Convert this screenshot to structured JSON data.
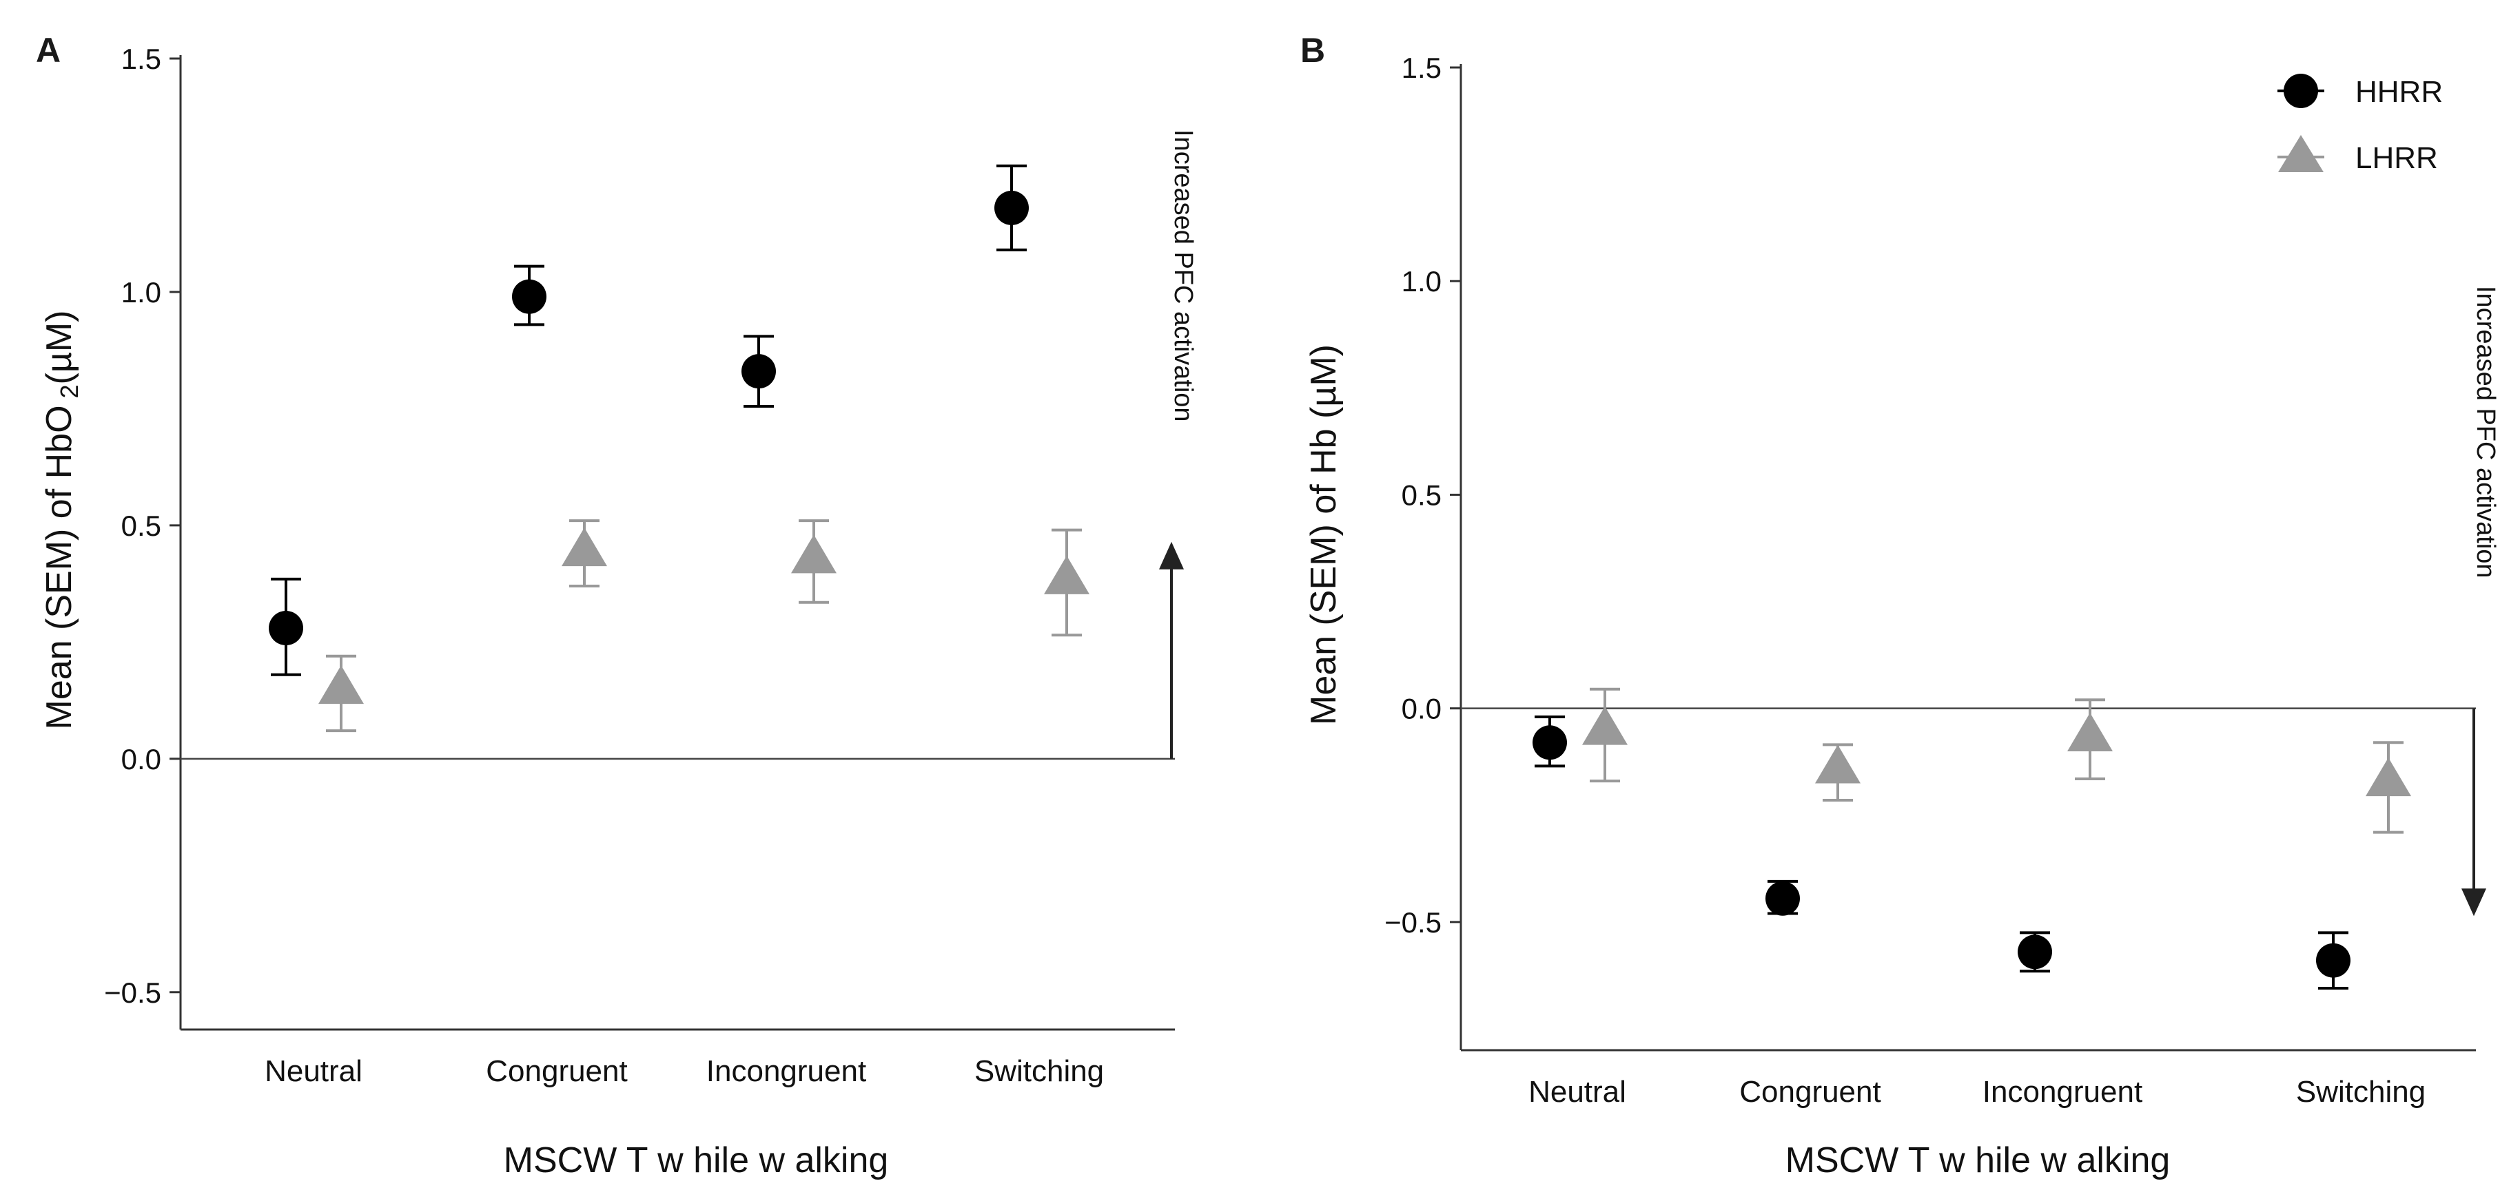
{
  "figure": {
    "background": "#ffffff"
  },
  "chart_data": [
    {
      "panel": "A",
      "type": "scatter",
      "title": "",
      "xlabel": "MSCW T w hile w alking",
      "ylabel_main": "Mean (SEM) of HbO",
      "ylabel_sub": "2",
      "ylabel_tail": "(µM)",
      "categories": [
        "Neutral",
        "Congruent",
        "Incongruent",
        "Switching"
      ],
      "ylim": [
        -0.58,
        1.5
      ],
      "yticks": [
        -0.5,
        0.0,
        0.5,
        1.0,
        1.5
      ],
      "ytick_labels": [
        "−0.5",
        "0.0",
        "0.5",
        "1.0",
        "1.5"
      ],
      "reference_line": 0.0,
      "annotation": {
        "text": "Increased PFC activation",
        "direction": "up",
        "y_from": 0.0,
        "y_to": 0.45
      },
      "series": [
        {
          "name": "HHRR",
          "marker": "circle",
          "color": "#000000",
          "values": [
            0.28,
            0.99,
            0.83,
            1.18
          ],
          "err_low": [
            0.18,
            0.93,
            0.755,
            1.09
          ],
          "err_high": [
            0.385,
            1.055,
            0.905,
            1.27
          ]
        },
        {
          "name": "LHRR",
          "marker": "triangle",
          "color": "#999999",
          "values": [
            0.15,
            0.445,
            0.43,
            0.385
          ],
          "err_low": [
            0.06,
            0.37,
            0.335,
            0.265
          ],
          "err_high": [
            0.22,
            0.51,
            0.51,
            0.49
          ]
        }
      ]
    },
    {
      "panel": "B",
      "type": "scatter",
      "title": "",
      "xlabel": "MSCW T w hile w alking",
      "ylabel_main": "Mean (SEM) of Hb (µM)",
      "categories": [
        "Neutral",
        "Congruent",
        "Incongruent",
        "Switching"
      ],
      "ylim": [
        -0.8,
        1.5
      ],
      "yticks": [
        -0.5,
        0.0,
        0.5,
        1.0,
        1.5
      ],
      "ytick_labels": [
        "−0.5",
        "0.0",
        "0.5",
        "1.0",
        "1.5"
      ],
      "reference_line": 0.0,
      "annotation": {
        "text": "Increased PFC activation",
        "direction": "down",
        "y_from": 0.0,
        "y_to": -0.47
      },
      "legend": {
        "location": "top-right",
        "entries": [
          "HHRR",
          "LHRR"
        ]
      },
      "series": [
        {
          "name": "HHRR",
          "marker": "circle",
          "color": "#000000",
          "values": [
            -0.08,
            -0.445,
            -0.57,
            -0.59
          ],
          "err_low": [
            -0.135,
            -0.48,
            -0.615,
            -0.655
          ],
          "err_high": [
            -0.02,
            -0.405,
            -0.525,
            -0.525
          ]
        },
        {
          "name": "LHRR",
          "marker": "triangle",
          "color": "#999999",
          "values": [
            -0.05,
            -0.14,
            -0.065,
            -0.17
          ],
          "err_low": [
            -0.17,
            -0.215,
            -0.165,
            -0.29
          ],
          "err_high": [
            0.045,
            -0.085,
            0.02,
            -0.08
          ]
        }
      ]
    }
  ]
}
